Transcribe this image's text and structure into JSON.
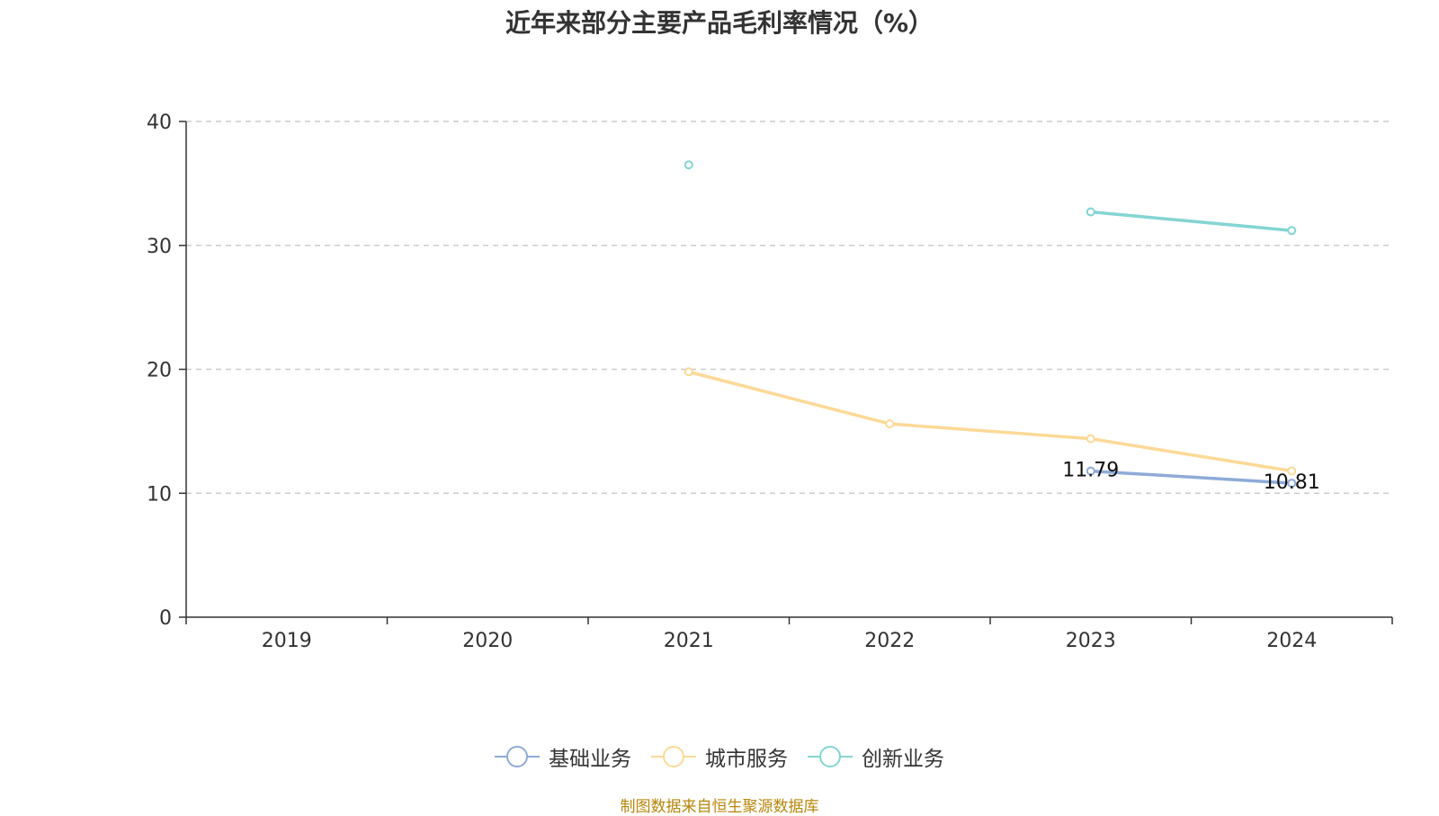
{
  "title": "近年来部分主要产品毛利率情况（%）",
  "source": "制图数据来自恒生聚源数据库",
  "chart_data": {
    "type": "line",
    "title": "近年来部分主要产品毛利率情况（%）",
    "categories": [
      "2019",
      "2020",
      "2021",
      "2022",
      "2023",
      "2024"
    ],
    "ylim": [
      0,
      40
    ],
    "yticks": [
      0,
      10,
      20,
      30,
      40
    ],
    "grid": true,
    "legend_position": "bottom",
    "series": [
      {
        "name": "基础业务",
        "color": "#8eaad8",
        "values": [
          null,
          null,
          null,
          null,
          11.79,
          10.81
        ],
        "labels": [
          null,
          null,
          null,
          null,
          "11.79",
          "10.81"
        ]
      },
      {
        "name": "城市服务",
        "color": "#fcd997",
        "values": [
          null,
          null,
          19.8,
          15.6,
          14.4,
          11.8
        ],
        "labels": [
          null,
          null,
          null,
          null,
          null,
          null
        ]
      },
      {
        "name": "创新业务",
        "color": "#83d5d2",
        "values": [
          null,
          null,
          36.5,
          null,
          32.7,
          31.2
        ],
        "labels": [
          null,
          null,
          null,
          null,
          null,
          null
        ]
      }
    ]
  }
}
